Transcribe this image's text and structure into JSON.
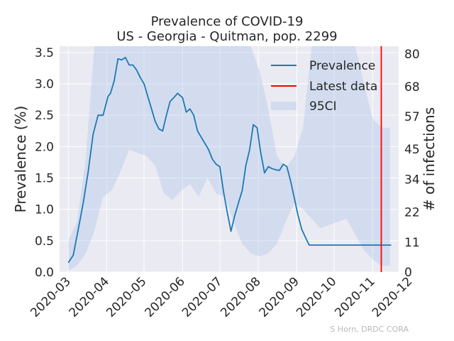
{
  "chart_data": {
    "type": "line",
    "title": "Prevalence of COVID-19",
    "subtitle": "US - Georgia - Quitman, pop. 2299",
    "ylabel": "Prevalence (%)",
    "y2label": "# of infections",
    "ylim": [
      0,
      3.6
    ],
    "y2lim": [
      0,
      82.8
    ],
    "yticks": [
      0.0,
      0.5,
      1.0,
      1.5,
      2.0,
      2.5,
      3.0,
      3.5
    ],
    "ytick_labels": [
      "0.0",
      "0.5",
      "1.0",
      "1.5",
      "2.0",
      "2.5",
      "3.0",
      "3.5"
    ],
    "y2ticks": [
      0,
      11,
      22,
      34,
      45,
      57,
      68,
      80
    ],
    "y2tick_labels": [
      "0",
      "11",
      "22",
      "34",
      "45",
      "57",
      "68",
      "80"
    ],
    "xlim": [
      "2020-02-23",
      "2020-11-22"
    ],
    "xticks": [
      "2020-03-01",
      "2020-04-01",
      "2020-05-01",
      "2020-06-01",
      "2020-07-01",
      "2020-08-01",
      "2020-09-01",
      "2020-10-01",
      "2020-11-01",
      "2020-12-01"
    ],
    "xtick_labels": [
      "2020-03",
      "2020-04",
      "2020-05",
      "2020-06",
      "2020-07",
      "2020-08",
      "2020-09",
      "2020-10",
      "2020-11",
      "2020-12"
    ],
    "grid": true,
    "legend_position": "top-right",
    "legend": [
      "Prevalence",
      "Latest data",
      "95CI"
    ],
    "colors": {
      "prevalence": "#1f77b4",
      "latest": "#ff0000",
      "ci": "#aec7e8",
      "background": "#eaeaf2",
      "grid": "#ffffff"
    },
    "latest_data_date": "2020-11-08",
    "series": [
      {
        "name": "Prevalence",
        "x": [
          "2020-03-01",
          "2020-03-05",
          "2020-03-09",
          "2020-03-13",
          "2020-03-17",
          "2020-03-21",
          "2020-03-25",
          "2020-03-29",
          "2020-04-02",
          "2020-04-04",
          "2020-04-07",
          "2020-04-10",
          "2020-04-13",
          "2020-04-16",
          "2020-04-19",
          "2020-04-22",
          "2020-04-25",
          "2020-04-28",
          "2020-05-01",
          "2020-05-04",
          "2020-05-07",
          "2020-05-10",
          "2020-05-13",
          "2020-05-16",
          "2020-05-19",
          "2020-05-22",
          "2020-05-25",
          "2020-05-28",
          "2020-06-01",
          "2020-06-04",
          "2020-06-07",
          "2020-06-10",
          "2020-06-13",
          "2020-06-16",
          "2020-06-19",
          "2020-06-22",
          "2020-06-25",
          "2020-06-28",
          "2020-07-01",
          "2020-07-04",
          "2020-07-07",
          "2020-07-10",
          "2020-07-13",
          "2020-07-16",
          "2020-07-19",
          "2020-07-22",
          "2020-07-25",
          "2020-07-28",
          "2020-07-31",
          "2020-08-03",
          "2020-08-06",
          "2020-08-09",
          "2020-08-12",
          "2020-08-15",
          "2020-08-18",
          "2020-08-21",
          "2020-08-24",
          "2020-08-27",
          "2020-08-30",
          "2020-09-02",
          "2020-09-05",
          "2020-09-08",
          "2020-09-11",
          "2020-09-14",
          "2020-09-17",
          "2020-09-20",
          "2020-09-23",
          "2020-09-26",
          "2020-09-29",
          "2020-10-02",
          "2020-10-05",
          "2020-10-08",
          "2020-10-11",
          "2020-10-14",
          "2020-10-17",
          "2020-10-20",
          "2020-10-23",
          "2020-10-26",
          "2020-10-29",
          "2020-11-01",
          "2020-11-04",
          "2020-11-07",
          "2020-11-10",
          "2020-11-13",
          "2020-11-16"
        ],
        "values": [
          0.15,
          0.27,
          0.68,
          1.1,
          1.6,
          2.2,
          2.5,
          2.5,
          2.8,
          2.85,
          3.05,
          3.4,
          3.38,
          3.42,
          3.3,
          3.3,
          3.22,
          3.1,
          3.0,
          2.8,
          2.6,
          2.4,
          2.28,
          2.25,
          2.5,
          2.72,
          2.78,
          2.85,
          2.78,
          2.55,
          2.6,
          2.5,
          2.25,
          2.15,
          2.05,
          1.95,
          1.8,
          1.72,
          1.68,
          1.28,
          0.95,
          0.65,
          0.9,
          1.1,
          1.3,
          1.7,
          1.95,
          2.35,
          2.3,
          1.9,
          1.58,
          1.68,
          1.65,
          1.63,
          1.62,
          1.72,
          1.68,
          1.45,
          1.18,
          0.9,
          0.68,
          0.55,
          0.43,
          0.43,
          0.43,
          0.43,
          0.43,
          0.43,
          0.43,
          0.43,
          0.43,
          0.43,
          0.43,
          0.43,
          0.43,
          0.43,
          0.43,
          0.43,
          0.43,
          0.43,
          0.43,
          0.43,
          0.43,
          0.43,
          0.43
        ]
      },
      {
        "name": "95CI",
        "x": [
          "2020-03-01",
          "2020-03-08",
          "2020-03-15",
          "2020-03-22",
          "2020-03-29",
          "2020-04-05",
          "2020-04-12",
          "2020-04-19",
          "2020-04-26",
          "2020-05-03",
          "2020-05-10",
          "2020-05-17",
          "2020-05-24",
          "2020-05-31",
          "2020-06-07",
          "2020-06-14",
          "2020-06-21",
          "2020-06-28",
          "2020-07-05",
          "2020-07-12",
          "2020-07-19",
          "2020-07-26",
          "2020-08-02",
          "2020-08-09",
          "2020-08-16",
          "2020-08-23",
          "2020-08-30",
          "2020-09-06",
          "2020-09-13",
          "2020-09-20",
          "2020-09-27",
          "2020-10-04",
          "2020-10-11",
          "2020-10-18",
          "2020-10-25",
          "2020-11-01",
          "2020-11-08",
          "2020-11-15"
        ],
        "lower": [
          0.02,
          0.1,
          0.3,
          0.65,
          1.2,
          1.3,
          1.6,
          1.95,
          1.9,
          1.85,
          1.7,
          1.25,
          1.15,
          1.3,
          1.4,
          1.2,
          1.5,
          1.25,
          1.2,
          0.8,
          0.45,
          0.3,
          0.25,
          0.3,
          0.45,
          0.8,
          1.1,
          1.0,
          0.85,
          0.7,
          0.75,
          0.8,
          0.85,
          0.6,
          0.35,
          0.2,
          0.1,
          0.1
        ],
        "upper": [
          0.5,
          0.8,
          1.8,
          3.6,
          3.6,
          3.6,
          3.6,
          3.6,
          3.6,
          3.6,
          3.6,
          3.6,
          3.6,
          3.6,
          3.6,
          3.6,
          3.6,
          3.6,
          3.6,
          3.6,
          3.6,
          3.6,
          3.2,
          2.6,
          1.85,
          1.65,
          1.85,
          2.3,
          3.6,
          3.6,
          3.6,
          3.6,
          3.6,
          3.6,
          3.0,
          2.45,
          2.3,
          2.3
        ]
      }
    ]
  },
  "credit": "S Horn, DRDC CORA"
}
